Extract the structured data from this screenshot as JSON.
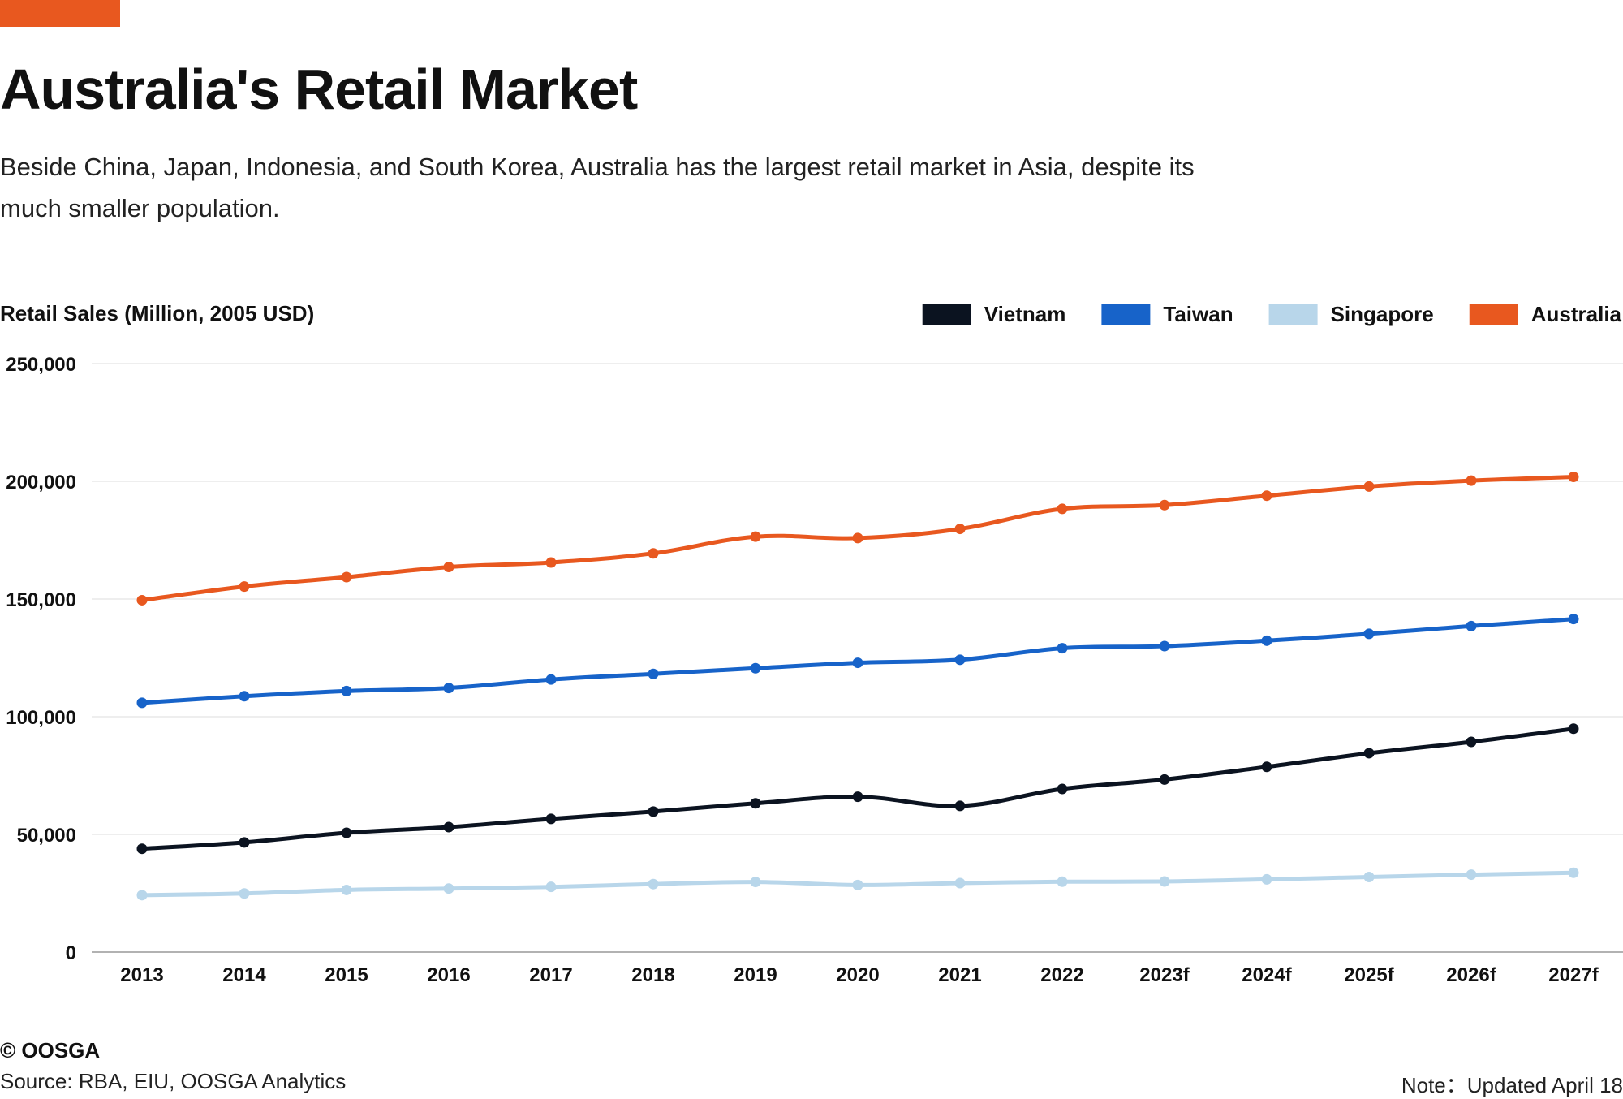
{
  "header": {
    "title": "Australia's Retail Market",
    "subtitle": "Beside China, Japan, Indonesia, and South Korea, Australia has the largest retail market in Asia, despite its much smaller population."
  },
  "colors": {
    "accent": "#e8581f",
    "vietnam": "#0b1320",
    "taiwan": "#1763c9",
    "singapore": "#b8d6ea",
    "australia": "#e8581f",
    "grid": "#dddddd"
  },
  "chart_data": {
    "type": "line",
    "ylabel": "Retail Sales (Million, 2005 USD)",
    "xlabel": "",
    "ylim": [
      0,
      250000
    ],
    "yticks": [
      0,
      50000,
      100000,
      150000,
      200000,
      250000
    ],
    "ytick_labels": [
      "0",
      "50,000",
      "100,000",
      "150,000",
      "200,000",
      "250,000"
    ],
    "grid": true,
    "legend_position": "top-right",
    "x": [
      "2013",
      "2014",
      "2015",
      "2016",
      "2017",
      "2018",
      "2019",
      "2020",
      "2021",
      "2022",
      "2023f",
      "2024f",
      "2025f",
      "2026f",
      "2027f"
    ],
    "series": [
      {
        "name": "Vietnam",
        "color": "#0b1320",
        "values": [
          43900,
          46600,
          50700,
          53100,
          56600,
          59700,
          63200,
          66000,
          62100,
          69300,
          73300,
          78700,
          84500,
          89300,
          94900
        ]
      },
      {
        "name": "Taiwan",
        "color": "#1763c9",
        "values": [
          105900,
          108700,
          110900,
          112200,
          115800,
          118200,
          120600,
          122900,
          124200,
          129100,
          130000,
          132300,
          135200,
          138500,
          141500
        ]
      },
      {
        "name": "Singapore",
        "color": "#b8d6ea",
        "values": [
          24200,
          24900,
          26400,
          27000,
          27700,
          28900,
          29800,
          28500,
          29300,
          29900,
          30000,
          30900,
          31900,
          32900,
          33700
        ]
      },
      {
        "name": "Australia",
        "color": "#e8581f",
        "values": [
          149500,
          155300,
          159300,
          163600,
          165500,
          169400,
          176500,
          175900,
          179800,
          188300,
          189900,
          193900,
          197800,
          200300,
          201900
        ]
      }
    ]
  },
  "footer": {
    "brand": "© OOSGA",
    "source": "Source: RBA, EIU, OOSGA Analytics",
    "note": "Note：Updated April 18"
  }
}
